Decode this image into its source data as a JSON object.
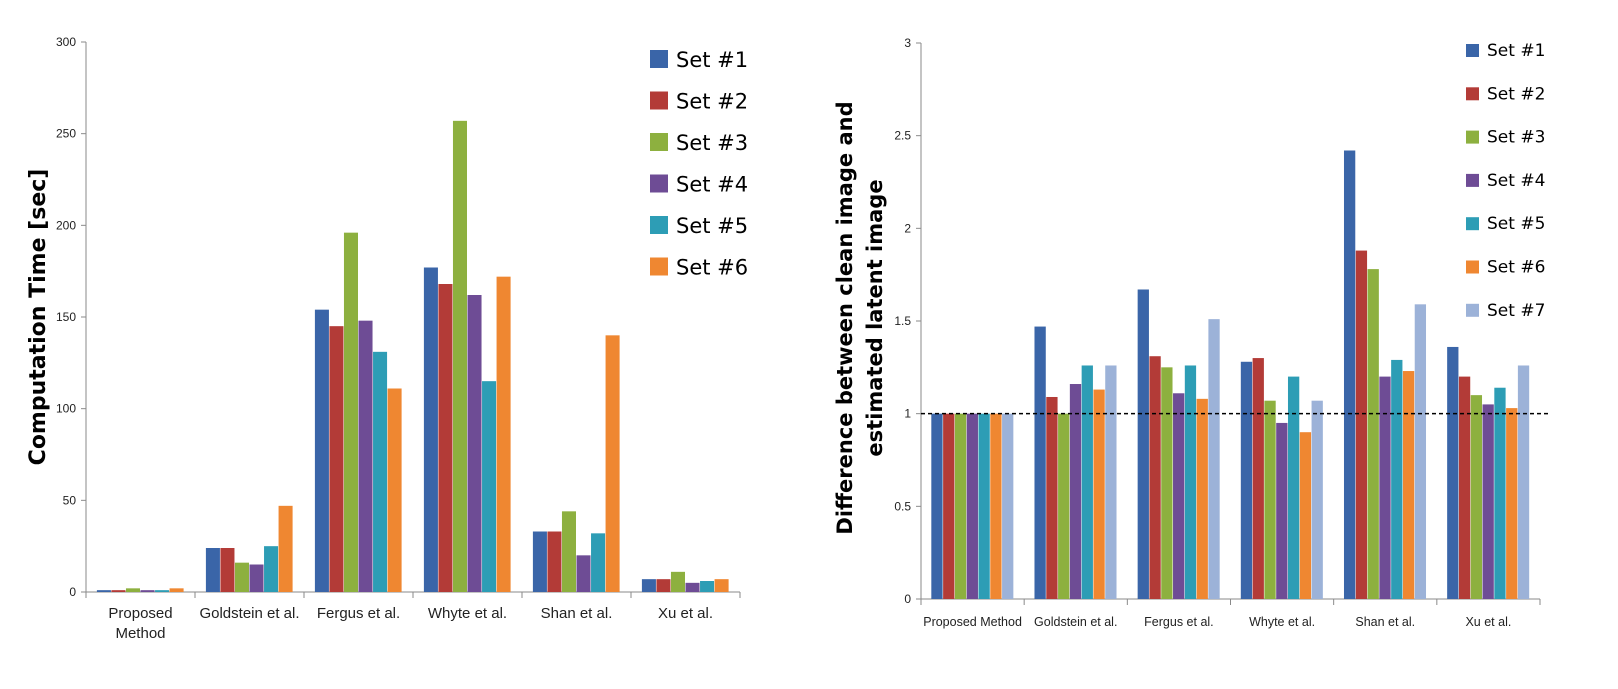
{
  "chart_data": [
    {
      "type": "bar",
      "title": "",
      "xlabel": "",
      "ylabel": "Computation Time [sec]",
      "ylim": [
        0,
        300
      ],
      "yticks": [
        "0",
        "50",
        "100",
        "150",
        "200",
        "250",
        "300"
      ],
      "categories": [
        "Proposed\nMethod",
        "Goldstein et al.",
        "Fergus et al.",
        "Whyte et al.",
        "Shan et al.",
        "Xu et al."
      ],
      "legend_position": "top-right",
      "grid": false,
      "series": [
        {
          "name": "Set #1",
          "color": "#3a65a8",
          "values": [
            1,
            24,
            154,
            177,
            33,
            7
          ]
        },
        {
          "name": "Set #2",
          "color": "#b33b37",
          "values": [
            1,
            24,
            145,
            168,
            33,
            7
          ]
        },
        {
          "name": "Set #3",
          "color": "#8db03f",
          "values": [
            2,
            16,
            196,
            257,
            44,
            11
          ]
        },
        {
          "name": "Set #4",
          "color": "#6e4c95",
          "values": [
            1,
            15,
            148,
            162,
            20,
            5
          ]
        },
        {
          "name": "Set #5",
          "color": "#2d9db5",
          "values": [
            1,
            25,
            131,
            115,
            32,
            6
          ]
        },
        {
          "name": "Set #6",
          "color": "#ef8731",
          "values": [
            2,
            47,
            111,
            172,
            140,
            7
          ]
        }
      ]
    },
    {
      "type": "bar",
      "title": "",
      "xlabel": "",
      "ylabel": "Difference between clean image and estimated latent image",
      "ylabel_lines": [
        "Difference between clean image and",
        "estimated latent image"
      ],
      "ylim": [
        0,
        3
      ],
      "yticks": [
        "0",
        "0.5",
        "1",
        "1.5",
        "2",
        "2.5",
        "3"
      ],
      "reference_line": 1,
      "categories": [
        "Proposed Method",
        "Goldstein et al.",
        "Fergus et al.",
        "Whyte et al.",
        "Shan et al.",
        "Xu et al."
      ],
      "legend_position": "top-right",
      "grid": false,
      "series": [
        {
          "name": "Set #1",
          "color": "#3a65a8",
          "values": [
            1.0,
            1.47,
            1.67,
            1.28,
            2.42,
            1.36
          ]
        },
        {
          "name": "Set #2",
          "color": "#b33b37",
          "values": [
            1.0,
            1.09,
            1.31,
            1.3,
            1.88,
            1.2
          ]
        },
        {
          "name": "Set #3",
          "color": "#8db03f",
          "values": [
            1.0,
            1.0,
            1.25,
            1.07,
            1.78,
            1.1
          ]
        },
        {
          "name": "Set #4",
          "color": "#6e4c95",
          "values": [
            1.0,
            1.16,
            1.11,
            0.95,
            1.2,
            1.05
          ]
        },
        {
          "name": "Set #5",
          "color": "#2d9db5",
          "values": [
            1.0,
            1.26,
            1.26,
            1.2,
            1.29,
            1.14
          ]
        },
        {
          "name": "Set #6",
          "color": "#ef8731",
          "values": [
            1.0,
            1.13,
            1.08,
            0.9,
            1.23,
            1.03
          ]
        },
        {
          "name": "Set #7",
          "color": "#9cb2d8",
          "values": [
            1.0,
            1.26,
            1.51,
            1.07,
            1.59,
            1.26
          ]
        }
      ]
    }
  ]
}
